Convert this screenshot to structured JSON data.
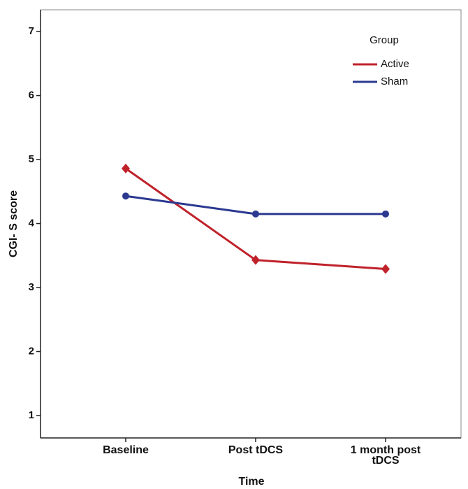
{
  "chart_data": {
    "type": "line",
    "x_label": "Time",
    "y_label": "CGI- S score",
    "legend_title": "Group",
    "categories": [
      "Baseline",
      "Post tDCS",
      "1 month post tDCS"
    ],
    "series": [
      {
        "name": "Active",
        "color": "#c0222b",
        "marker": "diamond",
        "values": [
          4.86,
          3.43,
          3.29
        ]
      },
      {
        "name": "Sham",
        "color": "#2b3990",
        "marker": "circle",
        "values": [
          4.43,
          4.15,
          4.15
        ]
      }
    ],
    "ylim": [
      0.65,
      7.34
    ],
    "yticks": [
      1,
      2,
      3,
      4,
      5,
      6,
      7
    ]
  }
}
